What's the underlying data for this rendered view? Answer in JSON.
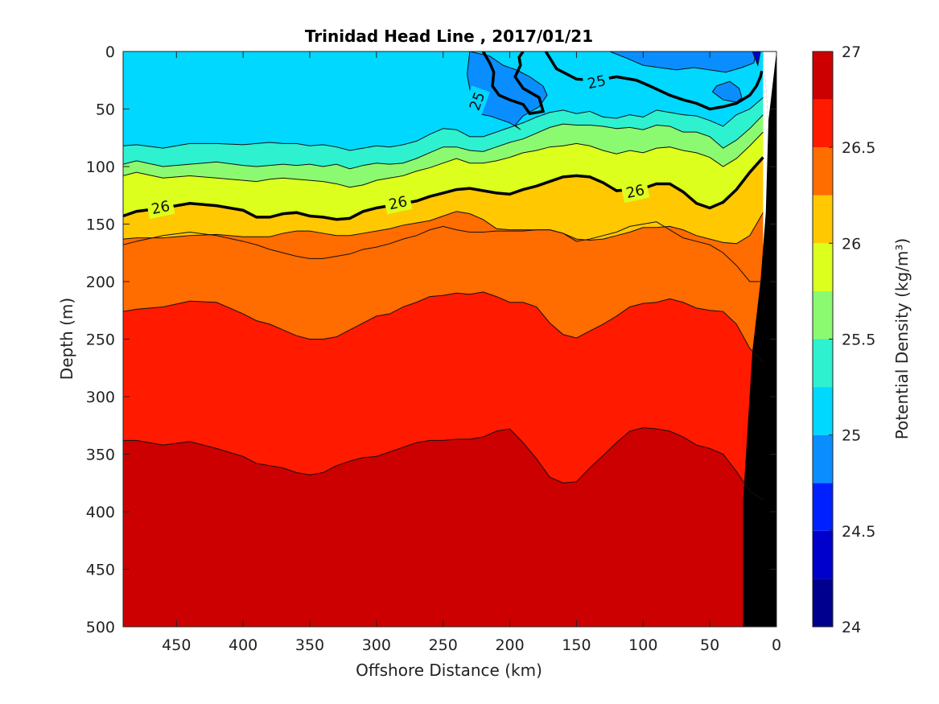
{
  "chart_data": {
    "type": "contour",
    "title": "Trinidad Head Line , 2017/01/21",
    "xlabel": "Offshore Distance (km)",
    "ylabel": "Depth (m)",
    "colorbar_label": "Potential Density (kg/m³)",
    "xlim": [
      490,
      0
    ],
    "ylim": [
      0,
      500
    ],
    "x_ticks": [
      "450",
      "400",
      "350",
      "300",
      "250",
      "200",
      "150",
      "100",
      "50",
      "0"
    ],
    "y_ticks": [
      "0",
      "50",
      "100",
      "150",
      "200",
      "250",
      "300",
      "350",
      "400",
      "450",
      "500"
    ],
    "colorbar_ticks": [
      "24",
      "24.5",
      "25",
      "25.5",
      "26",
      "26.5",
      "27"
    ],
    "colorbar_range": [
      24,
      27
    ],
    "levels": [
      24.0,
      24.25,
      24.5,
      24.75,
      25.0,
      25.25,
      25.5,
      25.75,
      26.0,
      26.25,
      26.5,
      26.75,
      27.0
    ],
    "level_colors": [
      "#00008f",
      "#0000cc",
      "#0020ff",
      "#0a8eff",
      "#00d8ff",
      "#2ef1d0",
      "#8cfa70",
      "#dcff1e",
      "#ffc800",
      "#ff6c00",
      "#ff1a00",
      "#cc0000"
    ],
    "labeled_contours": [
      {
        "level": "25",
        "x": 225,
        "y": 43
      },
      {
        "level": "25",
        "x": 135,
        "y": 26
      },
      {
        "level": "26",
        "x": 462,
        "y": 135
      },
      {
        "level": "26",
        "x": 284,
        "y": 131
      },
      {
        "level": "26",
        "x": 106,
        "y": 121
      }
    ],
    "isopycnal_depths": {
      "x": [
        490,
        480,
        460,
        440,
        420,
        400,
        390,
        380,
        370,
        360,
        350,
        340,
        330,
        320,
        310,
        300,
        290,
        280,
        270,
        260,
        250,
        240,
        230,
        220,
        210,
        200,
        190,
        180,
        170,
        160,
        150,
        140,
        130,
        120,
        110,
        100,
        90,
        80,
        70,
        60,
        50,
        40,
        30,
        20,
        10
      ],
      "d25_0": [
        82,
        81,
        84,
        80,
        80,
        81,
        80,
        79,
        80,
        80,
        82,
        81,
        83,
        86,
        84,
        82,
        83,
        81,
        78,
        72,
        67,
        68,
        74,
        74,
        70,
        66,
        62,
        57,
        53,
        51,
        54,
        52,
        57,
        58,
        55,
        57,
        51,
        53,
        55,
        56,
        60,
        65,
        55,
        50,
        40
      ],
      "d25_5": [
        98,
        95,
        100,
        98,
        96,
        99,
        100,
        99,
        98,
        99,
        98,
        100,
        98,
        102,
        99,
        97,
        98,
        97,
        93,
        88,
        83,
        83,
        86,
        87,
        83,
        79,
        76,
        71,
        66,
        63,
        64,
        64,
        65,
        67,
        66,
        68,
        64,
        65,
        70,
        70,
        74,
        84,
        77,
        67,
        55
      ],
      "d25_75": [
        108,
        105,
        110,
        108,
        110,
        112,
        113,
        111,
        110,
        111,
        112,
        113,
        115,
        118,
        116,
        112,
        110,
        108,
        104,
        101,
        97,
        93,
        97,
        97,
        95,
        92,
        88,
        86,
        83,
        82,
        80,
        82,
        86,
        89,
        86,
        88,
        84,
        83,
        86,
        88,
        92,
        100,
        93,
        82,
        70
      ],
      "d26_0": [
        143,
        139,
        136,
        132,
        134,
        138,
        144,
        144,
        141,
        140,
        143,
        144,
        146,
        145,
        139,
        136,
        134,
        132,
        130,
        126,
        123,
        120,
        119,
        121,
        123,
        124,
        120,
        117,
        113,
        109,
        108,
        109,
        114,
        121,
        120,
        119,
        115,
        115,
        122,
        132,
        136,
        131,
        120,
        105,
        92
      ],
      "d26_25": [
        163,
        162,
        162,
        160,
        159,
        161,
        161,
        161,
        158,
        156,
        156,
        158,
        160,
        160,
        158,
        156,
        154,
        151,
        149,
        147,
        143,
        139,
        141,
        146,
        154,
        155,
        155,
        155,
        155,
        158,
        163,
        164,
        163,
        160,
        157,
        153,
        153,
        152,
        155,
        160,
        163,
        166,
        167,
        160,
        140
      ],
      "d26_5": [
        168,
        165,
        160,
        157,
        160,
        165,
        168,
        172,
        175,
        178,
        180,
        180,
        178,
        176,
        172,
        170,
        167,
        163,
        160,
        155,
        152,
        155,
        157,
        157,
        156,
        156,
        156,
        155,
        155,
        158,
        165,
        163,
        160,
        157,
        152,
        150,
        148,
        155,
        162,
        165,
        168,
        175,
        186,
        200,
        200
      ],
      "d26_75": [
        226,
        224,
        222,
        217,
        218,
        228,
        234,
        237,
        242,
        247,
        250,
        250,
        248,
        242,
        236,
        230,
        228,
        222,
        218,
        213,
        212,
        210,
        211,
        209,
        213,
        218,
        218,
        222,
        236,
        246,
        249,
        243,
        237,
        230,
        222,
        219,
        218,
        215,
        218,
        223,
        225,
        226,
        237,
        258,
        270
      ],
      "d27_0": [
        338,
        338,
        342,
        339,
        345,
        352,
        358,
        360,
        362,
        366,
        368,
        366,
        360,
        356,
        353,
        352,
        348,
        344,
        340,
        338,
        338,
        337,
        337,
        335,
        330,
        328,
        340,
        354,
        370,
        375,
        374,
        362,
        351,
        340,
        330,
        327,
        328,
        330,
        335,
        342,
        345,
        350,
        365,
        382,
        390
      ]
    },
    "upper_features": {
      "25_0_contours": [
        {
          "x": [
            220,
            215,
            212,
            213,
            208,
            200,
            190,
            185,
            175,
            178,
            190,
            196,
            192,
            193,
            190
          ],
          "y": [
            0,
            10,
            18,
            30,
            38,
            42,
            46,
            54,
            52,
            40,
            32,
            22,
            12,
            5,
            0
          ]
        },
        {
          "x": [
            173,
            165,
            150,
            135,
            120,
            105,
            95,
            80,
            70,
            60,
            50,
            40,
            30,
            20,
            15,
            12,
            11
          ],
          "y": [
            0,
            15,
            24,
            25,
            22,
            25,
            30,
            38,
            42,
            45,
            50,
            48,
            45,
            38,
            30,
            22,
            17
          ]
        }
      ],
      "low_density_patches": [
        {
          "x": [
            230,
            215,
            205,
            195,
            185,
            175,
            172,
            178,
            190,
            196,
            192,
            193,
            200,
            215,
            225,
            228,
            232
          ],
          "y": [
            0,
            4,
            12,
            16,
            22,
            30,
            38,
            48,
            56,
            64,
            68,
            67,
            62,
            56,
            54,
            45,
            20
          ]
        },
        {
          "x": [
            125,
            112,
            100,
            88,
            75,
            62,
            50,
            38,
            26,
            17,
            15,
            40,
            60,
            80,
            100
          ],
          "y": [
            0,
            6,
            12,
            14,
            16,
            14,
            16,
            18,
            14,
            10,
            0,
            0,
            0,
            0,
            0
          ]
        },
        {
          "x": [
            45,
            35,
            28,
            26,
            30,
            40,
            48
          ],
          "y": [
            30,
            26,
            32,
            40,
            44,
            42,
            35
          ]
        }
      ]
    },
    "bathymetry_mask": {
      "x": [
        0,
        0,
        25,
        25,
        18,
        12,
        8,
        6,
        10
      ],
      "y": [
        0,
        500,
        500,
        390,
        260,
        200,
        140,
        60,
        0
      ]
    }
  }
}
